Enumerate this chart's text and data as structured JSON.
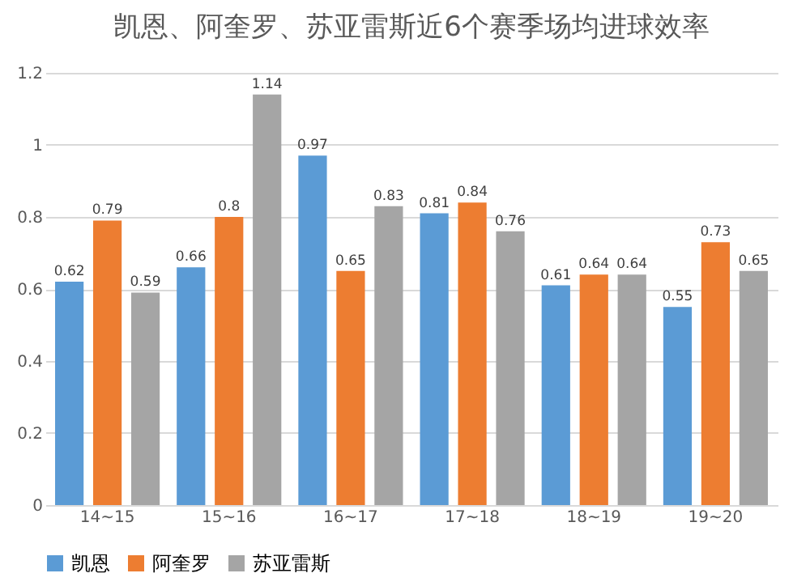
{
  "chart_data": {
    "type": "bar",
    "title": "凯恩、阿奎罗、苏亚雷斯近6个赛季场均进球效率",
    "categories": [
      "14~15",
      "15~16",
      "16~17",
      "17~18",
      "18~19",
      "19~20"
    ],
    "series": [
      {
        "name": "凯恩",
        "color": "#5b9bd5",
        "values": [
          0.62,
          0.66,
          0.97,
          0.81,
          0.61,
          0.55
        ]
      },
      {
        "name": "阿奎罗",
        "color": "#ed7d31",
        "values": [
          0.79,
          0.8,
          0.65,
          0.84,
          0.64,
          0.73
        ]
      },
      {
        "name": "苏亚雷斯",
        "color": "#a5a5a5",
        "values": [
          0.59,
          1.14,
          0.83,
          0.76,
          0.64,
          0.65
        ]
      }
    ],
    "ylim": [
      0,
      1.2
    ],
    "yticks": [
      0,
      0.2,
      0.4,
      0.6,
      0.8,
      1,
      1.2
    ],
    "grid": "y",
    "legend": "bottom",
    "data_labels": true
  }
}
